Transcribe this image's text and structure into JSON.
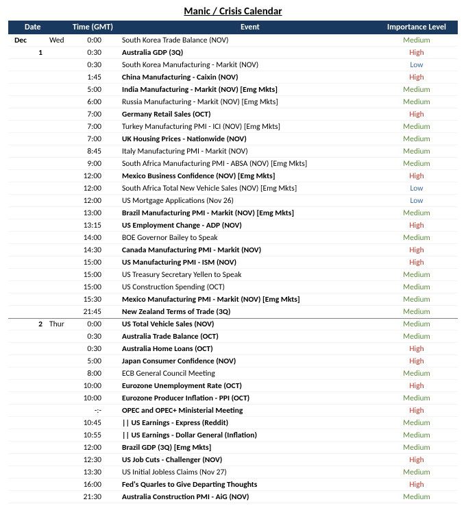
{
  "title": "Manic / Crisis Calendar",
  "columns": {
    "date": "Date",
    "time": "Time (GMT)",
    "event": "Event",
    "importance": "Importance Level"
  },
  "colors": {
    "header_bg": "#1a395e",
    "header_fg": "#ffffff",
    "medium": "#5e8a3a",
    "high": "#c0392b",
    "low": "#3b6aa0"
  },
  "rows": [
    {
      "month": "Dec",
      "daynum": "",
      "wday": "Wed",
      "time": "0:00",
      "event": "South Korea Trade Balance (NOV)",
      "bold": false,
      "importance": "Medium"
    },
    {
      "month": "",
      "daynum": "1",
      "wday": "",
      "time": "0:30",
      "event": "Australia GDP (3Q)",
      "bold": true,
      "importance": "High"
    },
    {
      "month": "",
      "daynum": "",
      "wday": "",
      "time": "0:30",
      "event": "South Korea Manufacturing - Markit (NOV)",
      "bold": false,
      "importance": "Low"
    },
    {
      "month": "",
      "daynum": "",
      "wday": "",
      "time": "1:45",
      "event": "China Manufacturing - Caixin (NOV)",
      "bold": true,
      "importance": "High"
    },
    {
      "month": "",
      "daynum": "",
      "wday": "",
      "time": "5:00",
      "event": "India Manufacturing - Markit (NOV) [Emg Mkts]",
      "bold": true,
      "importance": "Medium"
    },
    {
      "month": "",
      "daynum": "",
      "wday": "",
      "time": "6:00",
      "event": "Russia Manufacturing - Markit (NOV) [Emg Mkts]",
      "bold": false,
      "importance": "Medium"
    },
    {
      "month": "",
      "daynum": "",
      "wday": "",
      "time": "7:00",
      "event": "Germany Retail Sales (OCT)",
      "bold": true,
      "importance": "High"
    },
    {
      "month": "",
      "daynum": "",
      "wday": "",
      "time": "7:00",
      "event": "Turkey Manufacturing PMI - ICI (NOV) [Emg Mkts]",
      "bold": false,
      "importance": "Medium"
    },
    {
      "month": "",
      "daynum": "",
      "wday": "",
      "time": "7:00",
      "event": "UK Housing Prices - Nationwide (NOV)",
      "bold": true,
      "importance": "Medium"
    },
    {
      "month": "",
      "daynum": "",
      "wday": "",
      "time": "8:45",
      "event": "Italy Manufacturing PMI - Markit (NOV)",
      "bold": false,
      "importance": "Medium"
    },
    {
      "month": "",
      "daynum": "",
      "wday": "",
      "time": "9:00",
      "event": "South Africa Manufacturing PMI - ABSA (NOV) [Emg Mkts]",
      "bold": false,
      "importance": "Medium"
    },
    {
      "month": "",
      "daynum": "",
      "wday": "",
      "time": "12:00",
      "event": "Mexico Business Confidence (NOV) [Emg Mkts]",
      "bold": true,
      "importance": "High"
    },
    {
      "month": "",
      "daynum": "",
      "wday": "",
      "time": "12:00",
      "event": "South Africa Total New Vehicle Sales (NOV) [Emg Mkts]",
      "bold": false,
      "importance": "Low"
    },
    {
      "month": "",
      "daynum": "",
      "wday": "",
      "time": "12:00",
      "event": "US Mortgage Applications (Nov 26)",
      "bold": false,
      "importance": "Low"
    },
    {
      "month": "",
      "daynum": "",
      "wday": "",
      "time": "13:00",
      "event": "Brazil Manufacturing PMI - Markit (NOV) [Emg Mkts]",
      "bold": true,
      "importance": "Medium"
    },
    {
      "month": "",
      "daynum": "",
      "wday": "",
      "time": "13:15",
      "event": "US Employment Change - ADP (NOV)",
      "bold": true,
      "importance": "High"
    },
    {
      "month": "",
      "daynum": "",
      "wday": "",
      "time": "14:00",
      "event": "BOE Governor Bailey to Speak",
      "bold": false,
      "importance": "Medium"
    },
    {
      "month": "",
      "daynum": "",
      "wday": "",
      "time": "14:30",
      "event": "Canada Manufacturing PMI - Markit (NOV)",
      "bold": true,
      "importance": "High"
    },
    {
      "month": "",
      "daynum": "",
      "wday": "",
      "time": "15:00",
      "event": "US Manufacturing PMI - ISM (NOV)",
      "bold": true,
      "importance": "High"
    },
    {
      "month": "",
      "daynum": "",
      "wday": "",
      "time": "15:00",
      "event": "US Treasury Secretary Yellen to Speak",
      "bold": false,
      "importance": "Medium"
    },
    {
      "month": "",
      "daynum": "",
      "wday": "",
      "time": "15:00",
      "event": "US Construction Spending (OCT)",
      "bold": false,
      "importance": "Medium"
    },
    {
      "month": "",
      "daynum": "",
      "wday": "",
      "time": "15:30",
      "event": "Mexico Manufacturing PMI - Markit (NOV) [Emg Mkts]",
      "bold": true,
      "importance": "Medium"
    },
    {
      "month": "",
      "daynum": "",
      "wday": "",
      "time": "21:45",
      "event": "New Zealand Terms of Trade (3Q)",
      "bold": true,
      "importance": "Medium"
    },
    {
      "month": "",
      "daynum": "2",
      "wday": "Thur",
      "time": "0:00",
      "event": "US Total Vehicle Sales (NOV)",
      "bold": true,
      "importance": "Medium",
      "newday": true
    },
    {
      "month": "",
      "daynum": "",
      "wday": "",
      "time": "0:30",
      "event": "Australia Trade Balance (OCT)",
      "bold": true,
      "importance": "Medium"
    },
    {
      "month": "",
      "daynum": "",
      "wday": "",
      "time": "0:30",
      "event": "Australia Home Loans (OCT)",
      "bold": true,
      "importance": "High"
    },
    {
      "month": "",
      "daynum": "",
      "wday": "",
      "time": "5:00",
      "event": "Japan Consumer Confidence (NOV)",
      "bold": true,
      "importance": "High"
    },
    {
      "month": "",
      "daynum": "",
      "wday": "",
      "time": "8:00",
      "event": "ECB General Council Meeting",
      "bold": false,
      "importance": "Medium"
    },
    {
      "month": "",
      "daynum": "",
      "wday": "",
      "time": "10:00",
      "event": "Eurozone Unemployment Rate (OCT)",
      "bold": true,
      "importance": "High"
    },
    {
      "month": "",
      "daynum": "",
      "wday": "",
      "time": "10:00",
      "event": "Eurozone Producer Inflation - PPI (OCT)",
      "bold": true,
      "importance": "Medium"
    },
    {
      "month": "",
      "daynum": "",
      "wday": "",
      "time": "-:-",
      "event": "OPEC and OPEC+ Ministerial Meeting",
      "bold": true,
      "importance": "High"
    },
    {
      "month": "",
      "daynum": "",
      "wday": "",
      "time": "10:45",
      "event": "|| US Earnings - Express (Reddit)",
      "bold": true,
      "importance": "Medium"
    },
    {
      "month": "",
      "daynum": "",
      "wday": "",
      "time": "10:55",
      "event": "|| US Earnings - Dollar General (Inflation)",
      "bold": true,
      "importance": "Medium"
    },
    {
      "month": "",
      "daynum": "",
      "wday": "",
      "time": "12:00",
      "event": "Brazil GDP (3Q) [Emg Mkts]",
      "bold": true,
      "importance": "Medium"
    },
    {
      "month": "",
      "daynum": "",
      "wday": "",
      "time": "12:30",
      "event": "US Job Cuts - Challenger (NOV)",
      "bold": true,
      "importance": "High"
    },
    {
      "month": "",
      "daynum": "",
      "wday": "",
      "time": "13:30",
      "event": "US Initial Jobless Claims (Nov 27)",
      "bold": false,
      "importance": "Medium"
    },
    {
      "month": "",
      "daynum": "",
      "wday": "",
      "time": "16:00",
      "event": "Fed's Quarles to Give Departing Thoughts",
      "bold": true,
      "importance": "High"
    },
    {
      "month": "",
      "daynum": "",
      "wday": "",
      "time": "21:30",
      "event": "Australia Construction PMI - AiG (NOV)",
      "bold": true,
      "importance": "Medium"
    }
  ]
}
